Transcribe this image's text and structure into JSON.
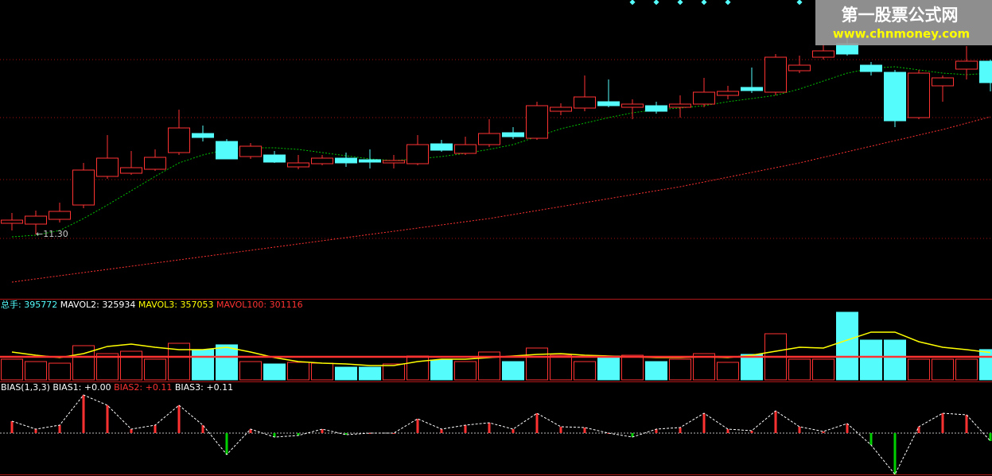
{
  "watermark": {
    "title": "第一股票公式网",
    "url": "www.chnmoney.com"
  },
  "chart_data": [
    {
      "type": "candlestick",
      "open": [
        11.44,
        11.43,
        11.49,
        11.67,
        12.03,
        12.07,
        12.12,
        12.33,
        12.57,
        12.47,
        12.28,
        12.3,
        12.15,
        12.19,
        12.26,
        12.24,
        12.2,
        12.19,
        12.44,
        12.32,
        12.43,
        12.58,
        12.51,
        12.85,
        12.89,
        12.97,
        12.9,
        12.92,
        12.9,
        12.94,
        13.05,
        13.15,
        13.09,
        13.36,
        13.53,
        13.7,
        13.43,
        13.34,
        12.77,
        13.17,
        13.38,
        13.48
      ],
      "close": [
        11.48,
        11.53,
        11.59,
        12.11,
        12.26,
        12.14,
        12.27,
        12.64,
        12.52,
        12.25,
        12.41,
        12.21,
        12.2,
        12.26,
        12.2,
        12.21,
        12.23,
        12.43,
        12.36,
        12.43,
        12.57,
        12.53,
        12.92,
        12.9,
        13.03,
        12.92,
        12.94,
        12.85,
        12.94,
        13.09,
        13.1,
        13.11,
        13.53,
        13.43,
        13.61,
        13.57,
        13.35,
        12.73,
        13.33,
        13.27,
        13.48,
        13.21
      ],
      "high": [
        11.57,
        11.6,
        11.7,
        12.2,
        12.55,
        12.35,
        12.37,
        12.87,
        12.67,
        12.5,
        12.45,
        12.35,
        12.3,
        12.3,
        12.33,
        12.37,
        12.3,
        12.55,
        12.49,
        12.53,
        12.75,
        12.65,
        12.97,
        12.95,
        13.3,
        13.25,
        13.0,
        12.97,
        13.05,
        13.27,
        13.17,
        13.4,
        13.57,
        13.55,
        13.7,
        13.8,
        13.47,
        13.37,
        13.37,
        13.3,
        13.67,
        13.5
      ],
      "low": [
        11.35,
        11.3,
        11.45,
        11.63,
        12.0,
        12.05,
        12.1,
        12.3,
        12.47,
        12.25,
        12.25,
        12.2,
        12.12,
        12.17,
        12.15,
        12.13,
        12.13,
        12.17,
        12.34,
        12.3,
        12.4,
        12.5,
        12.49,
        12.8,
        12.85,
        12.9,
        12.75,
        12.82,
        12.77,
        12.9,
        13.0,
        13.08,
        13.05,
        13.33,
        13.5,
        13.55,
        13.3,
        12.65,
        12.75,
        12.97,
        13.25,
        13.1
      ],
      "ylim": [
        10.55,
        14.25
      ],
      "up_color": "#ff3232",
      "down_color": "#54fcfc",
      "moving_averages": [
        {
          "color": "#ff3232",
          "values": [
            10.7,
            10.74,
            10.78,
            10.82,
            10.86,
            10.9,
            10.94,
            10.98,
            11.02,
            11.06,
            11.1,
            11.14,
            11.18,
            11.22,
            11.26,
            11.3,
            11.34,
            11.38,
            11.42,
            11.46,
            11.5,
            11.55,
            11.6,
            11.65,
            11.7,
            11.75,
            11.8,
            11.85,
            11.9,
            11.96,
            12.02,
            12.08,
            12.14,
            12.2,
            12.27,
            12.34,
            12.41,
            12.48,
            12.55,
            12.62,
            12.7,
            12.78
          ]
        },
        {
          "color": "#00c000",
          "values": [
            11.27,
            11.29,
            11.35,
            11.5,
            11.67,
            11.85,
            12.03,
            12.2,
            12.3,
            12.37,
            12.39,
            12.39,
            12.37,
            12.33,
            12.29,
            12.25,
            12.23,
            12.25,
            12.28,
            12.32,
            12.37,
            12.43,
            12.53,
            12.63,
            12.7,
            12.77,
            12.83,
            12.87,
            12.89,
            12.92,
            12.97,
            13.01,
            13.05,
            13.13,
            13.23,
            13.33,
            13.39,
            13.41,
            13.37,
            13.33,
            13.31,
            13.33
          ]
        }
      ],
      "annotation": {
        "value": 11.3,
        "label": "←11.30"
      }
    },
    {
      "type": "volume",
      "legend": [
        {
          "name": "总手:",
          "value": 395772,
          "color": "#54fcfc"
        },
        {
          "name": "MAVOL2:",
          "value": 325934,
          "color": "#ffffff"
        },
        {
          "name": "MAVOL3:",
          "value": 357053,
          "color": "#ffff00"
        },
        {
          "name": "MAVOL100:",
          "value": 301116,
          "color": "#ff3232"
        }
      ],
      "values": [
        270000,
        239000,
        218000,
        447000,
        343000,
        374000,
        270000,
        478000,
        395000,
        458000,
        239000,
        208000,
        229000,
        218000,
        166000,
        166000,
        208000,
        312000,
        260000,
        239000,
        364000,
        239000,
        416000,
        322000,
        239000,
        312000,
        322000,
        239000,
        270000,
        343000,
        229000,
        333000,
        603000,
        270000,
        270000,
        884000,
        520000,
        520000,
        270000,
        270000,
        270000,
        395772
      ],
      "ma_values": [
        364000,
        322000,
        291000,
        343000,
        437000,
        468000,
        426000,
        395000,
        395000,
        426000,
        364000,
        291000,
        239000,
        218000,
        208000,
        187000,
        187000,
        239000,
        270000,
        270000,
        291000,
        312000,
        333000,
        343000,
        322000,
        312000,
        302000,
        291000,
        291000,
        302000,
        291000,
        322000,
        374000,
        426000,
        416000,
        520000,
        624000,
        624000,
        499000,
        426000,
        395000,
        357053
      ],
      "ma_color": "#ffff00",
      "ylim": [
        0,
        900000
      ],
      "up_color": "#ff3232",
      "down_color": "#54fcfc"
    },
    {
      "type": "bias",
      "title": "BIAS(1,3,3)",
      "legend": [
        {
          "name": "BIAS1:",
          "value": 0,
          "value_label": "+0.00",
          "color": "#ffffff"
        },
        {
          "name": "BIAS2:",
          "value": 0.11,
          "value_label": "+0.11",
          "color": "#ff3232"
        },
        {
          "name": "BIAS3:",
          "value": 0.11,
          "value_label": "+0.11",
          "color": "#ffffff"
        }
      ],
      "values": [
        0.6,
        0.2,
        0.4,
        1.92,
        1.4,
        0.2,
        0.4,
        1.4,
        0.4,
        -1.08,
        0.2,
        -0.2,
        -0.12,
        0.2,
        -0.08,
        0.0,
        0.0,
        0.72,
        0.2,
        0.4,
        0.52,
        0.2,
        1.0,
        0.32,
        0.28,
        0.0,
        -0.2,
        0.2,
        0.28,
        1.0,
        0.2,
        0.12,
        1.12,
        0.32,
        0.08,
        0.48,
        -0.6,
        -2.08,
        0.32,
        1.0,
        0.92,
        -0.4
      ],
      "ylim": [
        -2.16,
        2.16
      ],
      "up_color": "#ff3232",
      "down_color": "#00d000"
    }
  ]
}
